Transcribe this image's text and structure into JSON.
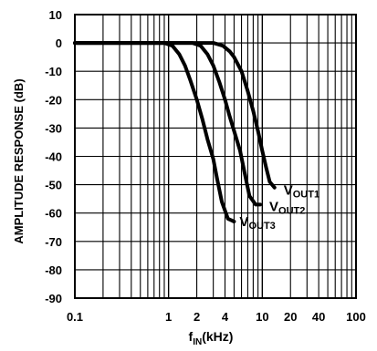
{
  "chart_data": {
    "type": "line",
    "xlabel": {
      "main": "f",
      "sub": "IN",
      "unit": "(kHz)"
    },
    "ylabel": "AMPLITUDE RESPONSE (dB)",
    "x_scale": "log",
    "xlim": [
      0.1,
      100
    ],
    "ylim": [
      -90,
      10
    ],
    "grid": true,
    "x_ticks": [
      {
        "value": 0.1,
        "label": "0.1"
      },
      {
        "value": 1,
        "label": "1"
      },
      {
        "value": 2,
        "label": "2"
      },
      {
        "value": 4,
        "label": "4"
      },
      {
        "value": 10,
        "label": "10"
      },
      {
        "value": 20,
        "label": "20"
      },
      {
        "value": 40,
        "label": "40"
      },
      {
        "value": 100,
        "label": "100"
      }
    ],
    "y_ticks": [
      10,
      0,
      -10,
      -20,
      -30,
      -40,
      -50,
      -60,
      -70,
      -80,
      -90
    ],
    "series": [
      {
        "name": "VOUT1",
        "label_main": "V",
        "label_sub": "OUT1",
        "x": [
          0.1,
          1,
          3,
          3.8,
          4.5,
          5,
          6,
          7,
          8,
          9,
          10,
          11,
          12,
          13.5
        ],
        "y": [
          0,
          0,
          0,
          -1,
          -3,
          -5,
          -10,
          -17,
          -24,
          -31,
          -38,
          -44,
          -49,
          -51
        ]
      },
      {
        "name": "VOUT2",
        "label_main": "V",
        "label_sub": "OUT2",
        "x": [
          0.1,
          1,
          1.8,
          2.2,
          2.6,
          3,
          3.5,
          4,
          4.5,
          5,
          5.8,
          6.5,
          7.3,
          8.5,
          9.5
        ],
        "y": [
          0,
          0,
          0,
          -1,
          -4,
          -8,
          -14,
          -20,
          -26,
          -31,
          -38,
          -46,
          -54,
          -57,
          -57
        ]
      },
      {
        "name": "VOUT3",
        "label_main": "V",
        "label_sub": "OUT3",
        "x": [
          0.1,
          0.9,
          1.1,
          1.3,
          1.5,
          1.7,
          2,
          2.3,
          2.6,
          3,
          3.3,
          3.7,
          4.3,
          5
        ],
        "y": [
          0,
          0,
          -1,
          -4,
          -8,
          -13,
          -20,
          -27,
          -34,
          -41,
          -48,
          -56,
          -62,
          -63
        ]
      }
    ]
  }
}
